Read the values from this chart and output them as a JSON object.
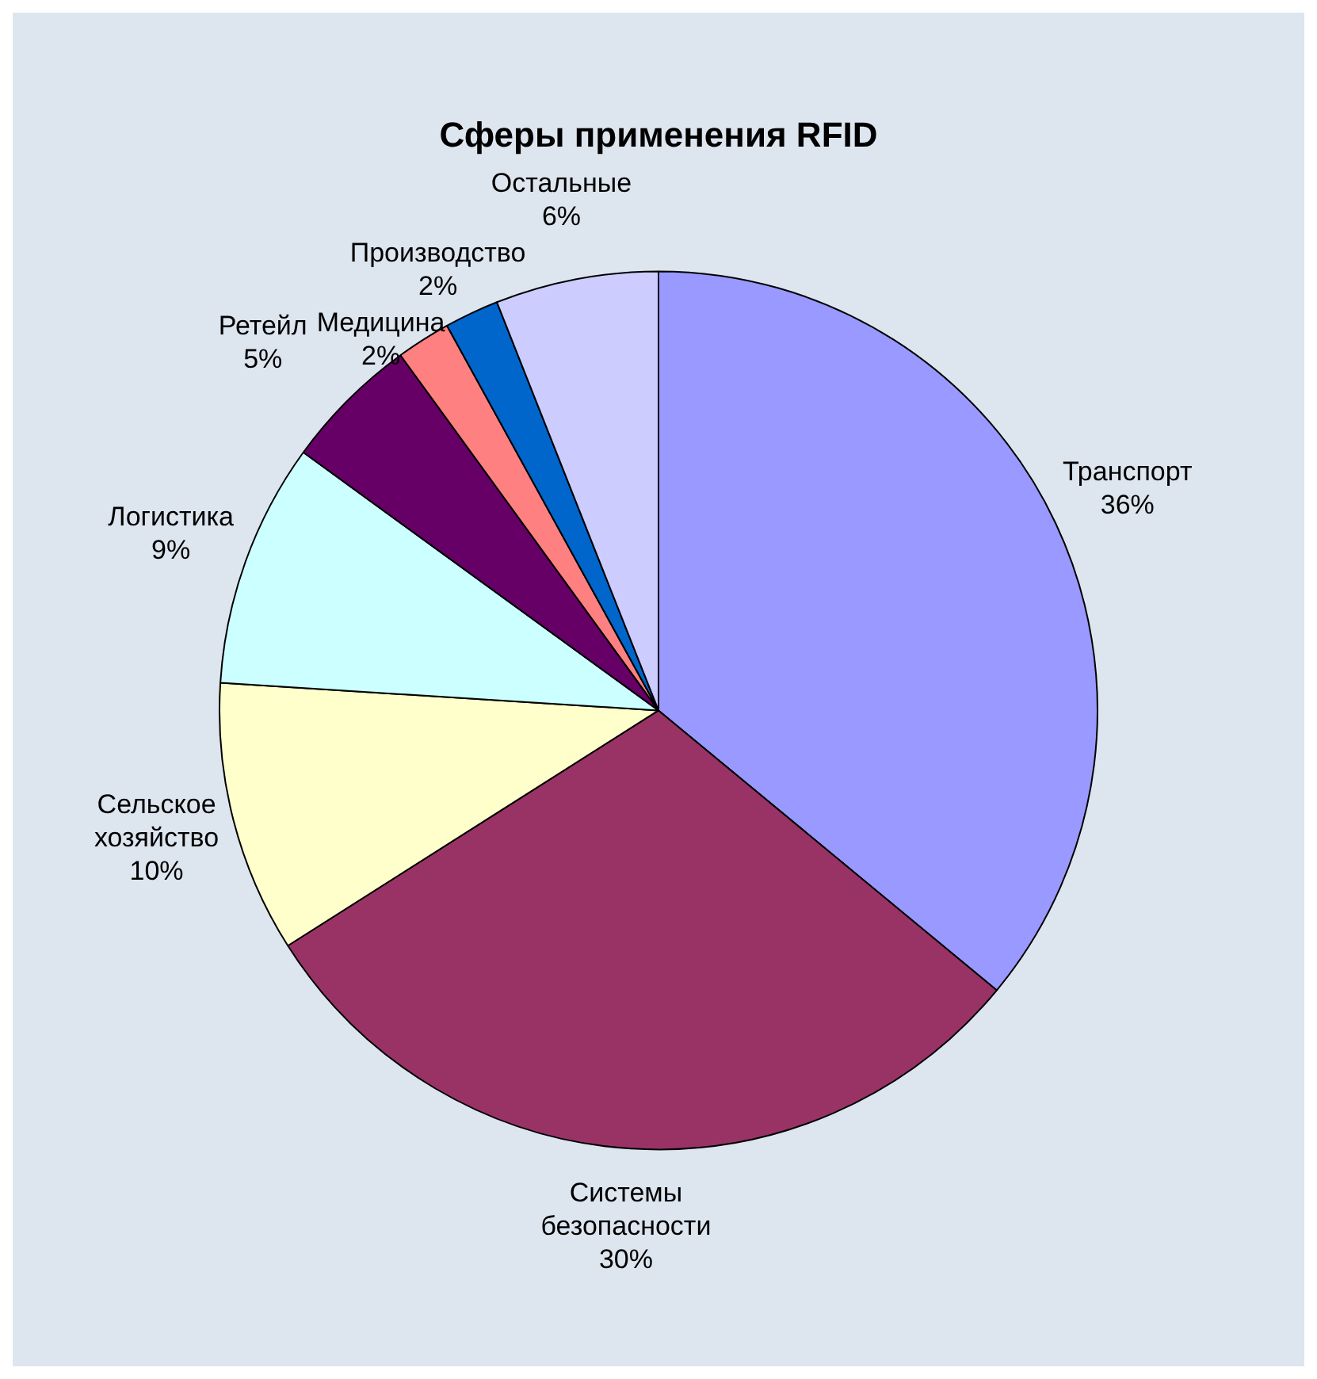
{
  "chart_data": {
    "type": "pie",
    "title": "Сферы применения RFID",
    "categories": [
      "Транспорт",
      "Системы безопасности",
      "Сельское хозяйство",
      "Логистика",
      "Ретейл",
      "Медицина",
      "Производство",
      "Остальные"
    ],
    "values": [
      36,
      30,
      10,
      9,
      5,
      2,
      2,
      6
    ],
    "colors": [
      "#9999ff",
      "#993366",
      "#ffffcc",
      "#ccffff",
      "#660066",
      "#ff8080",
      "#0066cc",
      "#ccccff"
    ],
    "value_labels": [
      "36%",
      "30%",
      "10%",
      "9%",
      "5%",
      "2%",
      "2%",
      "6%"
    ],
    "legend": false
  }
}
